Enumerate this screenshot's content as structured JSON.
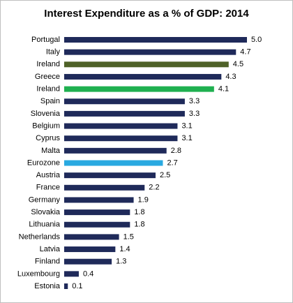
{
  "chart_data": {
    "type": "bar",
    "orientation": "horizontal",
    "title": "Interest Expenditure as a % of GDP: 2014",
    "categories": [
      "Portugal",
      "Italy",
      "Ireland",
      "Greece",
      "Ireland",
      "Spain",
      "Slovenia",
      "Belgium",
      "Cyprus",
      "Malta",
      "Eurozone",
      "Austria",
      "France",
      "Germany",
      "Slovakia",
      "Lithuania",
      "Netherlands",
      "Latvia",
      "Finland",
      "Luxembourg",
      "Estonia"
    ],
    "values": [
      5.0,
      4.7,
      4.5,
      4.3,
      4.1,
      3.3,
      3.3,
      3.1,
      3.1,
      2.8,
      2.7,
      2.5,
      2.2,
      1.9,
      1.8,
      1.8,
      1.5,
      1.4,
      1.3,
      0.4,
      0.1
    ],
    "value_labels": [
      "5.0",
      "4.7",
      "4.5",
      "4.3",
      "4.1",
      "3.3",
      "3.3",
      "3.1",
      "3.1",
      "2.8",
      "2.7",
      "2.5",
      "2.2",
      "1.9",
      "1.8",
      "1.8",
      "1.5",
      "1.4",
      "1.3",
      "0.4",
      "0.1"
    ],
    "colors": [
      "#1f2a5a",
      "#1f2a5a",
      "#4f6228",
      "#1f2a5a",
      "#1fb050",
      "#1f2a5a",
      "#1f2a5a",
      "#1f2a5a",
      "#1f2a5a",
      "#1f2a5a",
      "#29a9e1",
      "#1f2a5a",
      "#1f2a5a",
      "#1f2a5a",
      "#1f2a5a",
      "#1f2a5a",
      "#1f2a5a",
      "#1f2a5a",
      "#1f2a5a",
      "#1f2a5a",
      "#1f2a5a"
    ]
  }
}
